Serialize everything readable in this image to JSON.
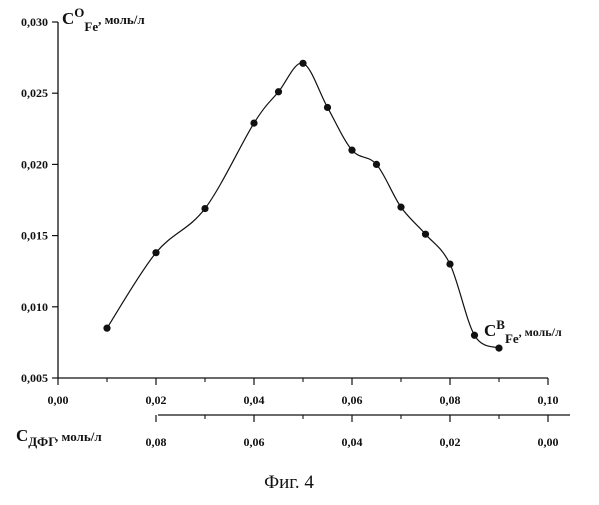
{
  "chart_data": {
    "type": "line",
    "title": "",
    "caption": "Фиг. 4",
    "y_label": {
      "main": "C",
      "sup": "O",
      "sub": "Fe",
      "unit": ", моль/л"
    },
    "x_label": {
      "main": "C",
      "sup": "B",
      "sub": "Fe",
      "unit": ", моль/л"
    },
    "x2_label": {
      "main": "C",
      "sub": "ДФГ",
      "unit": ", моль/л"
    },
    "ylim": [
      0.005,
      0.03
    ],
    "xlim": [
      0.0,
      0.1
    ],
    "x2lim": [
      0.1,
      0.0
    ],
    "y_ticks": [
      "0,005",
      "0,010",
      "0,015",
      "0,020",
      "0,025",
      "0,030"
    ],
    "x_ticks": [
      "0,00",
      "0,02",
      "0,04",
      "0,06",
      "0,08",
      "0,10"
    ],
    "x2_ticks": [
      "0,08",
      "0,06",
      "0,04",
      "0,02",
      "0,00"
    ],
    "grid": false,
    "smooth": true,
    "marker": "circle",
    "series": [
      {
        "x": [
          0.01,
          0.02,
          0.03,
          0.04,
          0.045,
          0.05,
          0.055,
          0.06,
          0.065,
          0.07,
          0.075,
          0.08,
          0.085,
          0.09
        ],
        "y": [
          0.0085,
          0.0138,
          0.0169,
          0.0229,
          0.0251,
          0.0271,
          0.024,
          0.021,
          0.02,
          0.017,
          0.0151,
          0.013,
          0.008,
          0.0071
        ]
      }
    ]
  }
}
